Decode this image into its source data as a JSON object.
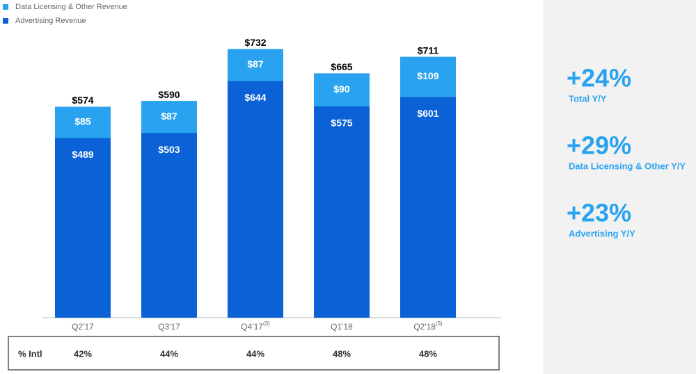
{
  "chart_data": {
    "type": "stacked_bar",
    "categories": [
      "Q2'17",
      "Q3'17",
      "Q4'17",
      "Q1'18",
      "Q2'18"
    ],
    "category_notes": [
      null,
      null,
      "(3)",
      null,
      "(3)"
    ],
    "series": [
      {
        "name": "Advertising Revenue",
        "color": "#0b62d6",
        "values": [
          489,
          503,
          644,
          575,
          601
        ],
        "value_labels": [
          "$489",
          "$503",
          "$644",
          "$575",
          "$601"
        ]
      },
      {
        "name": "Data Licensing & Other Revenue",
        "color": "#29a3ef",
        "values": [
          85,
          87,
          87,
          90,
          109
        ],
        "value_labels": [
          "$85",
          "$87",
          "$87",
          "$90",
          "$109"
        ]
      }
    ],
    "totals": [
      574,
      590,
      732,
      665,
      711
    ],
    "total_labels": [
      "$574",
      "$590",
      "$732",
      "$665",
      "$711"
    ]
  },
  "intl_row": {
    "label": "% Intl",
    "cells": [
      "42%",
      "44%",
      "44%",
      "48%",
      "48%"
    ]
  },
  "stats": [
    {
      "value": "+24%",
      "label": "Total Y/Y"
    },
    {
      "value": "+29%",
      "label": "Data Licensing & Other Y/Y"
    },
    {
      "value": "+23%",
      "label": "Advertising Y/Y"
    }
  ]
}
